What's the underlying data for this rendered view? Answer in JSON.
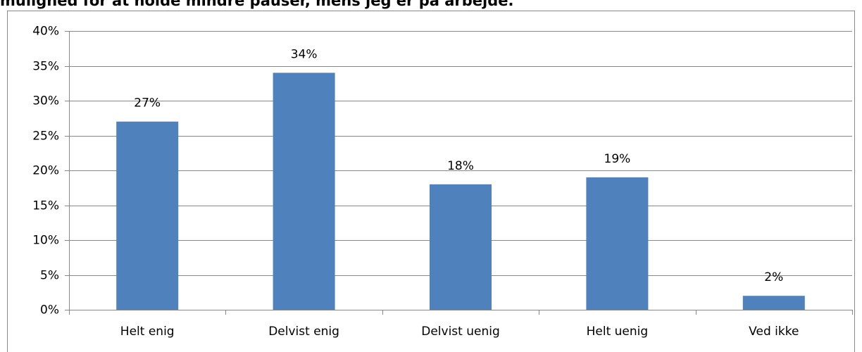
{
  "chart_data": {
    "type": "bar",
    "title": "mulighed for at holde mindre pauser, mens jeg er på arbejde.",
    "categories": [
      "Helt enig",
      "Delvist enig",
      "Delvist uenig",
      "Helt uenig",
      "Ved ikke"
    ],
    "values": [
      27,
      34,
      18,
      19,
      2
    ],
    "value_labels": [
      "27%",
      "34%",
      "18%",
      "19%",
      "2%"
    ],
    "color": "#4f81bd",
    "ylim": [
      0,
      40
    ],
    "yticks": [
      {
        "value": 0,
        "label": "0%"
      },
      {
        "value": 5,
        "label": "5%"
      },
      {
        "value": 10,
        "label": "10%"
      },
      {
        "value": 15,
        "label": "15%"
      },
      {
        "value": 20,
        "label": "20%"
      },
      {
        "value": 25,
        "label": "25%"
      },
      {
        "value": 30,
        "label": "30%"
      },
      {
        "value": 35,
        "label": "35%"
      },
      {
        "value": 40,
        "label": "40%"
      }
    ],
    "grid": true
  }
}
